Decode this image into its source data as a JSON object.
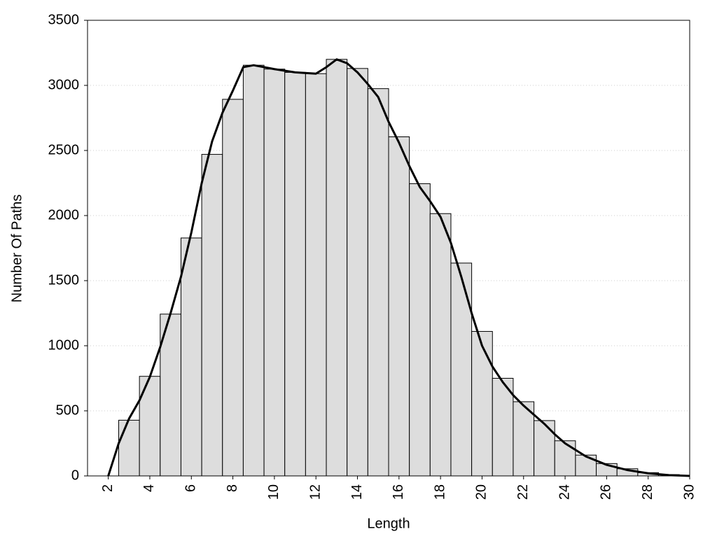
{
  "chart_data": {
    "type": "histogram",
    "x_label": "Length",
    "y_label": "Number Of Paths",
    "bins": [
      2.5,
      3.5,
      4.5,
      5.5,
      6.5,
      7.5,
      8.5,
      9.5,
      10.5,
      11.5,
      12.5,
      13.5,
      14.5,
      15.5,
      16.5,
      17.5,
      18.5,
      19.5,
      20.5,
      21.5,
      22.5,
      23.5,
      24.5,
      25.5,
      26.5,
      27.5,
      28.5,
      29.5
    ],
    "values": [
      428,
      765,
      1243,
      1828,
      2470,
      2893,
      3155,
      3125,
      3100,
      3090,
      3200,
      3130,
      2975,
      2605,
      2245,
      2015,
      1635,
      1110,
      750,
      570,
      425,
      270,
      160,
      95,
      55,
      25,
      10
    ],
    "color": "#dddddd",
    "line": {
      "color": "#000000",
      "x": [
        2,
        2.5,
        3,
        3.5,
        4,
        4.5,
        5,
        5.5,
        6,
        6.5,
        7,
        7.5,
        8,
        8.5,
        9,
        9.5,
        10,
        11,
        12,
        12.5,
        13,
        13.5,
        14,
        14.5,
        15,
        15.5,
        16,
        16.5,
        17,
        17.5,
        18,
        18.5,
        19,
        19.5,
        20,
        20.5,
        21,
        21.5,
        22,
        22.5,
        23,
        23.5,
        24,
        25,
        26,
        27,
        28,
        29,
        30
      ],
      "values": [
        0,
        250,
        440,
        580,
        760,
        990,
        1250,
        1530,
        1870,
        2250,
        2570,
        2790,
        2960,
        3140,
        3155,
        3140,
        3125,
        3100,
        3090,
        3140,
        3200,
        3170,
        3100,
        3010,
        2910,
        2720,
        2560,
        2380,
        2220,
        2110,
        1990,
        1790,
        1530,
        1250,
        1000,
        840,
        720,
        620,
        540,
        470,
        400,
        320,
        250,
        150,
        85,
        45,
        20,
        6,
        0
      ]
    },
    "xlim": [
      1,
      30
    ],
    "xticks": [
      2,
      4,
      6,
      8,
      10,
      12,
      14,
      16,
      18,
      20,
      22,
      24,
      26,
      28,
      30
    ],
    "ylim": [
      0,
      3500
    ],
    "yticks": [
      0,
      500,
      1000,
      1500,
      2000,
      2500,
      3000,
      3500
    ],
    "grid": true
  }
}
